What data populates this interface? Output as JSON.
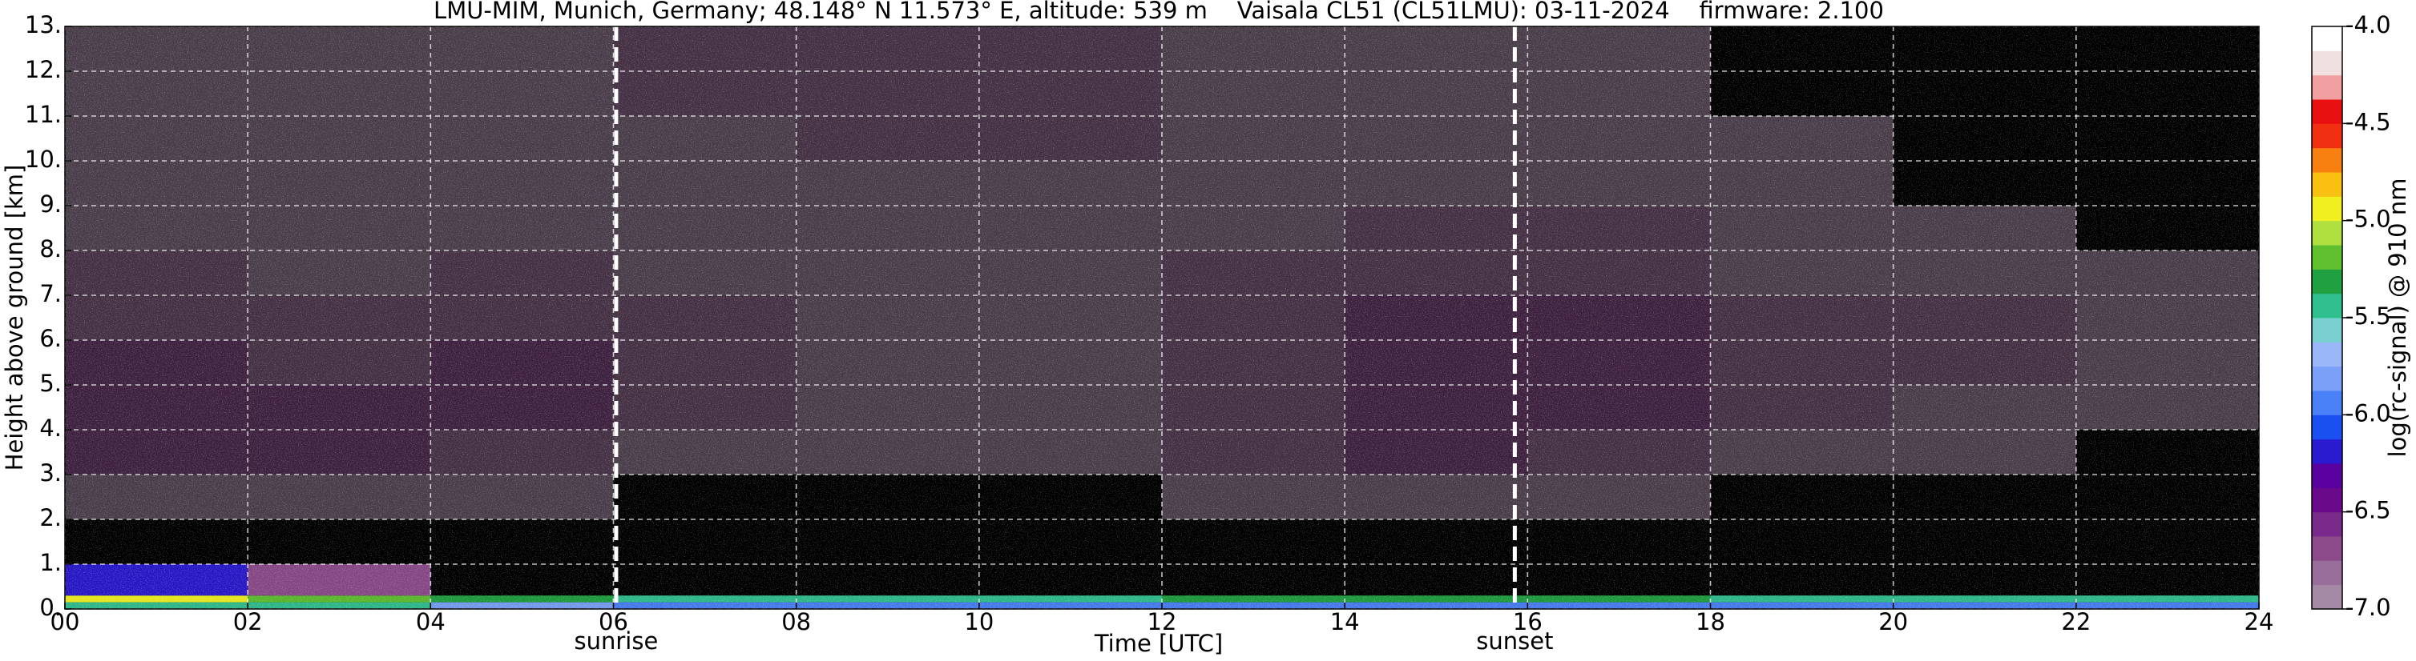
{
  "chart_data": {
    "type": "heatmap",
    "title": "LMU-MIM, Munich, Germany; 48.148° N 11.573° E, altitude: 539 m    Vaisala CL51 (CL51LMU): 03-11-2024    firmware: 2.100",
    "xlabel": "Time [UTC]",
    "ylabel": "Height above ground [km]",
    "colorbar_label": "log(rc-signal) @ 910 nm",
    "xlim": [
      0,
      24
    ],
    "ylim": [
      0,
      13
    ],
    "xticks": [
      {
        "value": 0,
        "label": "00"
      },
      {
        "value": 2,
        "label": "02"
      },
      {
        "value": 4,
        "label": "04"
      },
      {
        "value": 6,
        "label": "06"
      },
      {
        "value": 8,
        "label": "08"
      },
      10,
      12,
      14,
      16,
      18,
      20,
      22,
      24
    ],
    "yticks": [
      {
        "value": 0,
        "label": "0."
      },
      {
        "value": 1,
        "label": "1."
      },
      {
        "value": 2,
        "label": "2."
      },
      {
        "value": 3,
        "label": "3."
      },
      {
        "value": 4,
        "label": "4."
      },
      {
        "value": 5,
        "label": "5."
      },
      {
        "value": 6,
        "label": "6."
      },
      {
        "value": 7,
        "label": "7."
      },
      {
        "value": 8,
        "label": "8."
      },
      {
        "value": 9,
        "label": "9."
      },
      {
        "value": 10,
        "label": "10."
      },
      {
        "value": 11,
        "label": "11."
      },
      {
        "value": 12,
        "label": "12."
      },
      {
        "value": 13,
        "label": "13."
      }
    ],
    "grid": true,
    "clim": [
      -7,
      -4
    ],
    "cticks": [
      {
        "value": -7,
        "label": "-7.0"
      },
      {
        "value": -6.5,
        "label": "-6.5"
      },
      {
        "value": -6,
        "label": "-6.0"
      },
      {
        "value": -5.5,
        "label": "-5.5"
      },
      {
        "value": -5,
        "label": "-5.0"
      },
      {
        "value": -4.5,
        "label": "-4.5"
      },
      {
        "value": -4,
        "label": "-4.0"
      }
    ],
    "colors": [
      "#a58aa5",
      "#9a6e9a",
      "#8c4c8c",
      "#7a2a8a",
      "#6a0a8a",
      "#5a00a0",
      "#2a1ad0",
      "#1a50f0",
      "#4a80f8",
      "#7aa0f8",
      "#9ab8f8",
      "#7ad0d0",
      "#30c090",
      "#20a040",
      "#60c030",
      "#b0e040",
      "#f0f020",
      "#f8c010",
      "#f88010",
      "#f03010",
      "#e81010",
      "#f0a0a0",
      "#f0e0e0",
      "#ffffff"
    ],
    "x": [
      0,
      2,
      4,
      6,
      8,
      10,
      12,
      14,
      16,
      18,
      20,
      22,
      24
    ],
    "y": [
      0,
      0.15,
      0.3,
      1,
      2,
      3,
      4,
      5,
      6,
      7,
      8,
      9,
      10,
      11,
      12,
      13
    ],
    "z": [
      [
        -5.4,
        -5.5,
        -5.8,
        -5.9,
        -6.0,
        -6.0,
        -6.0,
        -6.0,
        -6.0,
        -5.9,
        -5.9,
        -5.9
      ],
      [
        -5.0,
        -5.2,
        -5.3,
        -5.4,
        -5.4,
        -5.4,
        -5.3,
        -5.3,
        -5.3,
        -5.4,
        -5.4,
        -5.4
      ],
      [
        -6.2,
        -6.7,
        null,
        null,
        null,
        null,
        null,
        null,
        null,
        null,
        null,
        null
      ],
      [
        null,
        null,
        null,
        null,
        null,
        null,
        null,
        null,
        null,
        null,
        null,
        null
      ],
      [
        -6.9,
        -6.9,
        -6.95,
        null,
        null,
        null,
        -6.95,
        -6.9,
        -6.95,
        null,
        null,
        null
      ],
      [
        -6.7,
        -6.75,
        -6.8,
        -6.9,
        -6.95,
        -6.95,
        -6.85,
        -6.7,
        -6.8,
        -6.9,
        -6.95,
        null
      ],
      [
        -6.7,
        -6.75,
        -6.75,
        -6.85,
        -6.9,
        -6.9,
        -6.8,
        -6.65,
        -6.7,
        -6.85,
        -6.9,
        -6.95
      ],
      [
        -6.75,
        -6.8,
        -6.75,
        -6.85,
        -6.9,
        -6.9,
        -6.8,
        -6.7,
        -6.7,
        -6.85,
        -6.85,
        -6.9
      ],
      [
        -6.8,
        -6.85,
        -6.8,
        -6.85,
        -6.9,
        -6.9,
        -6.85,
        -6.75,
        -6.75,
        -6.85,
        -6.85,
        -6.9
      ],
      [
        -6.85,
        -6.9,
        -6.85,
        -6.9,
        -6.9,
        -6.9,
        -6.85,
        -6.8,
        -6.8,
        -6.9,
        -6.9,
        -6.95
      ],
      [
        -6.9,
        -6.95,
        -6.9,
        -6.9,
        -6.9,
        -6.9,
        -6.9,
        -6.85,
        -6.85,
        -6.95,
        -6.95,
        null
      ],
      [
        -6.95,
        -6.95,
        -6.9,
        -6.9,
        -6.9,
        -6.9,
        -6.9,
        -6.9,
        -6.95,
        -6.95,
        null,
        null
      ],
      [
        -6.95,
        -6.95,
        -6.9,
        -6.9,
        -6.85,
        -6.85,
        -6.9,
        -6.9,
        -6.95,
        -6.95,
        null,
        null
      ],
      [
        -6.95,
        -6.95,
        -6.9,
        -6.85,
        -6.85,
        -6.85,
        -6.9,
        -6.95,
        -6.95,
        null,
        null,
        null
      ],
      [
        -6.95,
        -6.95,
        -6.9,
        -6.85,
        -6.85,
        -6.85,
        -6.9,
        -6.95,
        -6.95,
        null,
        null,
        null
      ]
    ],
    "annotations": [
      {
        "x": 6.03,
        "label": "sunrise"
      },
      {
        "x": 15.86,
        "label": "sunset"
      }
    ]
  }
}
